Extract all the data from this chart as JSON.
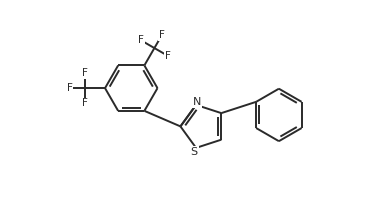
{
  "background_color": "#ffffff",
  "line_color": "#2a2a2a",
  "line_width": 1.4,
  "font_size": 7.5,
  "xlim": [
    0,
    10
  ],
  "ylim": [
    0,
    6
  ],
  "figsize": [
    3.66,
    2.2
  ],
  "dpi": 100
}
